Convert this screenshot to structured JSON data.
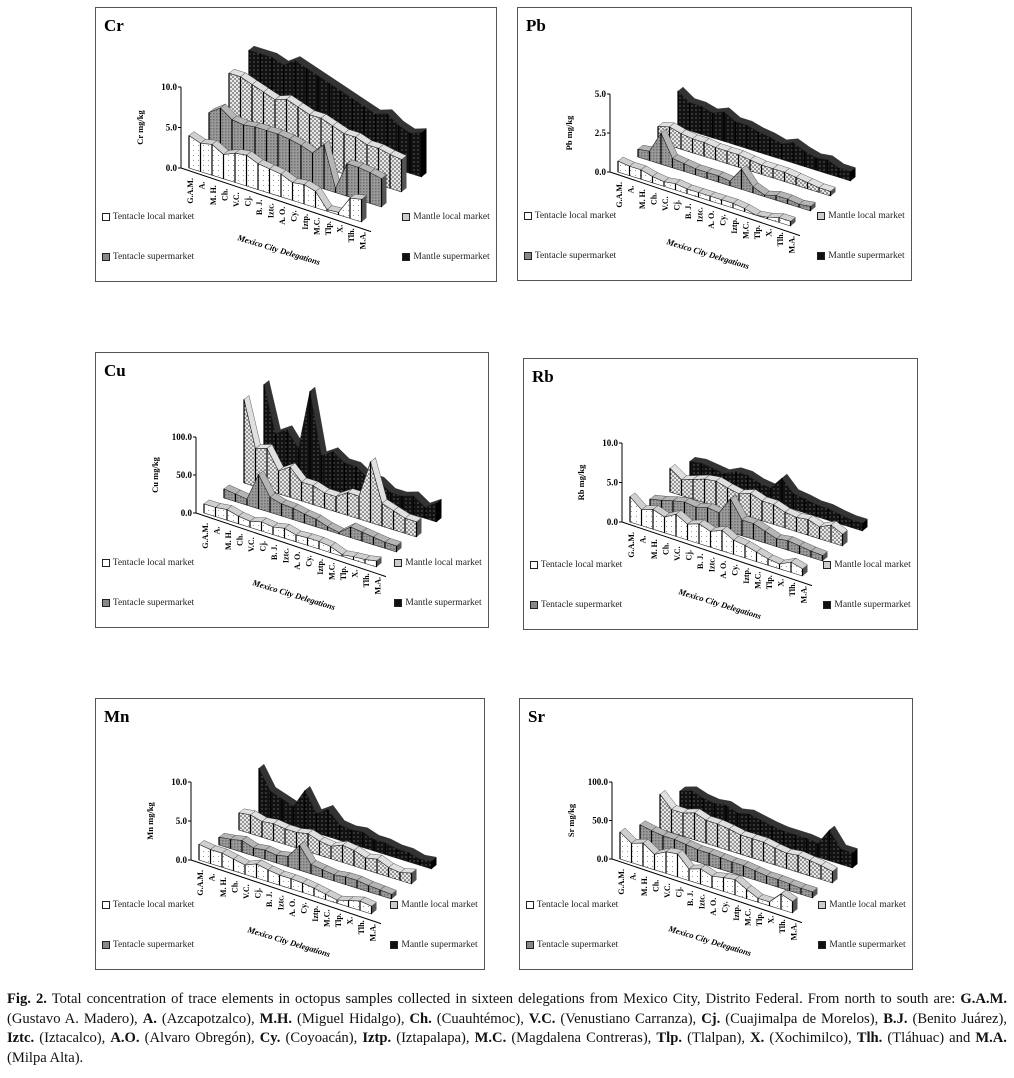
{
  "legend_colors": {
    "tentacle_local": "#ffffff",
    "tentacle_super": "#8c8c8c",
    "mantle_local": "#d6d6d6",
    "mantle_super": "#111111"
  },
  "chart_data": [
    {
      "type": "area",
      "title": "Cr",
      "ylabel": "Cr mg/kg",
      "xlabel": "Mexico City Delegations",
      "ylim": [
        0,
        10
      ],
      "yticks": [
        "0.0",
        "5.0",
        "10.0"
      ],
      "grid": false,
      "categories": [
        "G.A.M.",
        "A.",
        "M. H.",
        "Ch.",
        "V.C.",
        "Cj.",
        "B. J.",
        "Iztc.",
        "A. O.",
        "Cy.",
        "Iztp.",
        "M.C.",
        "Tlp.",
        "X.",
        "Tlh.",
        "M.A."
      ],
      "series": [
        {
          "name": "Tentacle local market",
          "values": [
            4,
            3.5,
            3.8,
            3,
            3.6,
            3.8,
            3.2,
            3,
            2.8,
            2.2,
            2.4,
            2,
            0.2,
            0.3,
            2.5,
            2.8
          ]
        },
        {
          "name": "Tentacle supermarket",
          "values": [
            5,
            6,
            5,
            4.8,
            5,
            5,
            5,
            4.8,
            4.5,
            4,
            5.5,
            0.5,
            4,
            4,
            3.8,
            3.5
          ]
        },
        {
          "name": "Mantle local market",
          "values": [
            8,
            8,
            7.5,
            7,
            6.5,
            7,
            6.5,
            6,
            6,
            5.5,
            5,
            5,
            4.5,
            4.5,
            4.2,
            4
          ]
        },
        {
          "name": "Mantle supermarket",
          "values": [
            9,
            9,
            9,
            8.5,
            9.5,
            9,
            8.5,
            8,
            7.5,
            7,
            6.5,
            6,
            6.5,
            5.5,
            5,
            5.5
          ]
        }
      ]
    },
    {
      "type": "area",
      "title": "Pb",
      "ylabel": "Pb mg/kg",
      "xlabel": "Mexico City Delegations",
      "ylim": [
        0,
        5
      ],
      "yticks": [
        "0.0",
        "2.5",
        "5.0"
      ],
      "grid": false,
      "categories": [
        "G.A.M.",
        "A.",
        "M. H.",
        "Ch.",
        "V.C.",
        "Cj.",
        "B. J.",
        "Iztc.",
        "A. O.",
        "Cy.",
        "Iztp.",
        "M.C.",
        "Tlp.",
        "X.",
        "Tlh.",
        "M.A."
      ],
      "series": [
        {
          "name": "Tentacle local market",
          "values": [
            0.7,
            0.6,
            0.6,
            0.4,
            0.3,
            0.4,
            0.3,
            0.3,
            0.3,
            0.3,
            0.3,
            0.2,
            0,
            0.1,
            0.3,
            0.3
          ]
        },
        {
          "name": "Tentacle supermarket",
          "values": [
            0.5,
            0.6,
            2.0,
            0.6,
            0.5,
            0.4,
            0.4,
            0.4,
            0.3,
            1.3,
            0.4,
            0.1,
            0.3,
            0.3,
            0.2,
            0.3
          ]
        },
        {
          "name": "Mantle local market",
          "values": [
            1.0,
            1.2,
            1.0,
            0.9,
            0.9,
            0.8,
            0.8,
            0.8,
            0.7,
            0.6,
            0.6,
            0.6,
            0.5,
            0.4,
            0.3,
            0.3
          ]
        },
        {
          "name": "Mantle supermarket",
          "values": [
            2.3,
            1.8,
            1.8,
            1.6,
            1.9,
            1.5,
            1.5,
            1.3,
            1.2,
            1.0,
            1.3,
            1.0,
            0.8,
            0.9,
            0.6,
            0.6
          ]
        }
      ]
    },
    {
      "type": "area",
      "title": "Cu",
      "ylabel": "Cu mg/kg",
      "xlabel": "Mexico City Delegations",
      "ylim": [
        0,
        100
      ],
      "yticks": [
        "0.0",
        "50.0",
        "100.0"
      ],
      "grid": false,
      "categories": [
        "G.A.M.",
        "A.",
        "M. H.",
        "Ch.",
        "V.C.",
        "Cj.",
        "B. J.",
        "Iztc.",
        "A. O.",
        "Cy.",
        "Iztp.",
        "M.C.",
        "Tlp.",
        "X.",
        "Tlh.",
        "M.A."
      ],
      "series": [
        {
          "name": "Tentacle local market",
          "values": [
            12,
            12,
            14,
            10,
            8,
            12,
            10,
            13,
            9,
            10,
            10,
            8,
            2,
            4,
            5,
            8
          ]
        },
        {
          "name": "Tentacle supermarket",
          "values": [
            12,
            10,
            8,
            45,
            20,
            16,
            15,
            12,
            10,
            5,
            2,
            14,
            12,
            10,
            8,
            8
          ]
        },
        {
          "name": "Mantle local market",
          "values": [
            110,
            50,
            55,
            30,
            40,
            25,
            25,
            20,
            20,
            30,
            30,
            80,
            30,
            25,
            20,
            20
          ]
        },
        {
          "name": "Mantle supermarket",
          "values": [
            110,
            50,
            60,
            40,
            120,
            40,
            50,
            40,
            40,
            30,
            30,
            20,
            20,
            25,
            15,
            25
          ]
        }
      ]
    },
    {
      "type": "area",
      "title": "Rb",
      "ylabel": "Rb mg/kg",
      "xlabel": "Mexico City Delegations",
      "ylim": [
        0,
        10
      ],
      "yticks": [
        "0.0",
        "5.0",
        "10.0"
      ],
      "grid": false,
      "categories": [
        "G.A.M.",
        "A.",
        "M. H.",
        "Ch.",
        "V.C.",
        "Cj.",
        "B. J.",
        "Iztc.",
        "A. O.",
        "Cy.",
        "Iztp.",
        "M.C.",
        "Tlp.",
        "X.",
        "Tlh.",
        "M.A."
      ],
      "series": [
        {
          "name": "Tentacle local market",
          "values": [
            3.2,
            2,
            2.5,
            2,
            2.8,
            2,
            2.5,
            2,
            2.6,
            1.8,
            1.6,
            1.2,
            0.8,
            0.6,
            1.3,
            0.9
          ]
        },
        {
          "name": "Tentacle supermarket",
          "values": [
            1.0,
            1.3,
            1.7,
            2.0,
            1.8,
            2.2,
            2.0,
            4.2,
            2.0,
            2.0,
            1.5,
            1.0,
            1.2,
            1.0,
            0.8,
            0.7
          ]
        },
        {
          "name": "Mantle local market",
          "values": [
            3,
            2,
            2.5,
            3,
            3.2,
            2.8,
            2.5,
            3,
            2.5,
            2.5,
            2,
            1.8,
            2,
            1.5,
            2.2,
            1.5
          ]
        },
        {
          "name": "Mantle supermarket",
          "values": [
            2,
            2.2,
            2,
            1.8,
            2.5,
            2.5,
            2,
            1.8,
            3.5,
            2,
            1.8,
            1.5,
            1.5,
            1.2,
            1,
            1
          ]
        }
      ]
    },
    {
      "type": "area",
      "title": "Mn",
      "ylabel": "Mn mg/kg",
      "xlabel": "Mexico City Delegations",
      "ylim": [
        0,
        10
      ],
      "yticks": [
        "0.0",
        "5.0",
        "10.0"
      ],
      "grid": false,
      "categories": [
        "G.A.M.",
        "A.",
        "M. H.",
        "Ch.",
        "V.C.",
        "Cj.",
        "B. J.",
        "Iztc.",
        "A. O.",
        "Cy.",
        "Iztp.",
        "M.C.",
        "Tlp.",
        "X.",
        "Tlh.",
        "M.A."
      ],
      "series": [
        {
          "name": "Tentacle local market",
          "values": [
            2,
            1.8,
            1.8,
            1.5,
            1.2,
            1.8,
            1.5,
            1.3,
            1.3,
            1.2,
            1.0,
            0.7,
            0.4,
            0.8,
            1.2,
            1.0
          ]
        },
        {
          "name": "Tentacle supermarket",
          "values": [
            1.0,
            1.2,
            1.5,
            1.0,
            1.2,
            1.0,
            1.3,
            3.2,
            1.2,
            1.0,
            0.8,
            1.0,
            1.0,
            0.8,
            0.7,
            0.6
          ]
        },
        {
          "name": "Mantle local market",
          "values": [
            2.2,
            2.4,
            2.0,
            2.2,
            2.0,
            2.0,
            2.3,
            1.8,
            1.6,
            2.2,
            2.0,
            1.5,
            1.8,
            1.2,
            1.0,
            1.4
          ]
        },
        {
          "name": "Mantle supermarket",
          "values": [
            6,
            3.5,
            3,
            2.5,
            5,
            2.5,
            3.5,
            2,
            1.8,
            2,
            1.5,
            1.5,
            1.2,
            1.2,
            0.8,
            1
          ]
        }
      ]
    },
    {
      "type": "area",
      "title": "Sr",
      "ylabel": "Sr mg/kg",
      "xlabel": "Mexico City Delegations",
      "ylim": [
        0,
        100
      ],
      "yticks": [
        "0.0",
        "50.0",
        "100.0"
      ],
      "grid": false,
      "categories": [
        "G.A.M.",
        "A.",
        "M. H.",
        "Ch.",
        "V.C.",
        "Cj.",
        "B. J.",
        "Iztc.",
        "A. O.",
        "Cy.",
        "Iztp.",
        "M.C.",
        "Tlp.",
        "X.",
        "Tlh.",
        "M.A."
      ],
      "series": [
        {
          "name": "Tentacle local market",
          "values": [
            35,
            25,
            30,
            20,
            28,
            30,
            15,
            20,
            15,
            18,
            20,
            12,
            5,
            5,
            20,
            15
          ]
        },
        {
          "name": "Tentacle supermarket",
          "values": [
            25,
            22,
            20,
            20,
            18,
            16,
            16,
            15,
            14,
            14,
            12,
            10,
            10,
            9,
            8,
            8
          ]
        },
        {
          "name": "Mantle local market",
          "values": [
            45,
            30,
            30,
            35,
            30,
            30,
            28,
            25,
            25,
            25,
            22,
            20,
            22,
            20,
            18,
            15
          ]
        },
        {
          "name": "Mantle supermarket",
          "values": [
            30,
            35,
            30,
            28,
            30,
            25,
            28,
            25,
            22,
            20,
            20,
            20,
            18,
            40,
            20,
            20
          ]
        }
      ]
    }
  ],
  "caption": [
    {
      "t": "Fig. 2.",
      "b": true
    },
    {
      "t": " Total concentration of trace elements in octopus samples collected in sixteen delegations from Mexico City, Distrito Federal. From north to south are: ",
      "b": false
    },
    {
      "t": "G.A.M.",
      "b": true
    },
    {
      "t": " (Gustavo A. Madero), ",
      "b": false
    },
    {
      "t": "A.",
      "b": true
    },
    {
      "t": " (Azcapotzalco), ",
      "b": false
    },
    {
      "t": "M.H.",
      "b": true
    },
    {
      "t": " (Miguel Hidalgo), ",
      "b": false
    },
    {
      "t": "Ch.",
      "b": true
    },
    {
      "t": " (Cuauhtémoc), ",
      "b": false
    },
    {
      "t": "V.C.",
      "b": true
    },
    {
      "t": " (Venustiano Carranza), ",
      "b": false
    },
    {
      "t": "Cj.",
      "b": true
    },
    {
      "t": " (Cuajimalpa de Morelos), ",
      "b": false
    },
    {
      "t": "B.J.",
      "b": true
    },
    {
      "t": " (Benito Juárez), ",
      "b": false
    },
    {
      "t": "Iztc.",
      "b": true
    },
    {
      "t": " (Iztacalco), ",
      "b": false
    },
    {
      "t": "A.O.",
      "b": true
    },
    {
      "t": " (Alvaro Obregón), ",
      "b": false
    },
    {
      "t": "Cy.",
      "b": true
    },
    {
      "t": " (Coyoacán), ",
      "b": false
    },
    {
      "t": "Iztp.",
      "b": true
    },
    {
      "t": " (Iztapalapa), ",
      "b": false
    },
    {
      "t": "M.C.",
      "b": true
    },
    {
      "t": " (Magdalena Contreras), ",
      "b": false
    },
    {
      "t": "Tlp.",
      "b": true
    },
    {
      "t": " (Tlalpan), ",
      "b": false
    },
    {
      "t": "X.",
      "b": true
    },
    {
      "t": " (Xochimilco), ",
      "b": false
    },
    {
      "t": "Tlh.",
      "b": true
    },
    {
      "t": " (Tláhuac) and ",
      "b": false
    },
    {
      "t": "M.A.",
      "b": true
    },
    {
      "t": " (Milpa Alta).",
      "b": false
    }
  ]
}
